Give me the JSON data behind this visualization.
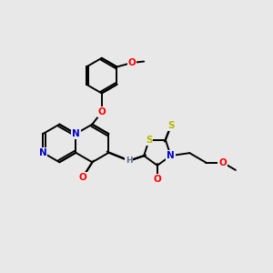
{
  "background_color": "#e8e8e8",
  "figure_size": [
    3.0,
    3.0
  ],
  "dpi": 100,
  "bond_color": "#000000",
  "bond_width": 1.4,
  "atom_colors": {
    "N": "#0000cc",
    "O": "#ff0000",
    "S": "#b8b800",
    "H": "#607080",
    "C": "#000000"
  }
}
